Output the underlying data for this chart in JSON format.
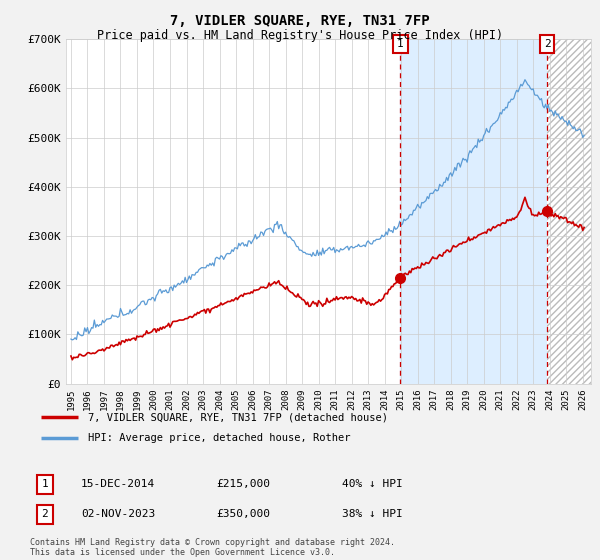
{
  "title": "7, VIDLER SQUARE, RYE, TN31 7FP",
  "subtitle": "Price paid vs. HM Land Registry's House Price Index (HPI)",
  "title_fontsize": 10,
  "subtitle_fontsize": 8.5,
  "ylim": [
    0,
    700000
  ],
  "yticks": [
    0,
    100000,
    200000,
    300000,
    400000,
    500000,
    600000,
    700000
  ],
  "ytick_labels": [
    "£0",
    "£100K",
    "£200K",
    "£300K",
    "£400K",
    "£500K",
    "£600K",
    "£700K"
  ],
  "xlim_start": 1994.7,
  "xlim_end": 2026.5,
  "xticks": [
    1995,
    1996,
    1997,
    1998,
    1999,
    2000,
    2001,
    2002,
    2003,
    2004,
    2005,
    2006,
    2007,
    2008,
    2009,
    2010,
    2011,
    2012,
    2013,
    2014,
    2015,
    2016,
    2017,
    2018,
    2019,
    2020,
    2021,
    2022,
    2023,
    2024,
    2025,
    2026
  ],
  "hpi_color": "#5b9bd5",
  "price_color": "#cc0000",
  "vline_color": "#cc0000",
  "fill_color": "#ddeeff",
  "hatch_color": "#cccccc",
  "marker1_year": 2014.96,
  "marker1_price": 215000,
  "marker2_year": 2023.84,
  "marker2_price": 350000,
  "legend_label_price": "7, VIDLER SQUARE, RYE, TN31 7FP (detached house)",
  "legend_label_hpi": "HPI: Average price, detached house, Rother",
  "annotation1_label": "1",
  "annotation1_date": "15-DEC-2014",
  "annotation1_price": "£215,000",
  "annotation1_hpi": "40% ↓ HPI",
  "annotation2_label": "2",
  "annotation2_date": "02-NOV-2023",
  "annotation2_price": "£350,000",
  "annotation2_hpi": "38% ↓ HPI",
  "footer": "Contains HM Land Registry data © Crown copyright and database right 2024.\nThis data is licensed under the Open Government Licence v3.0.",
  "bg_color": "#f2f2f2",
  "plot_bg_color": "#ffffff",
  "grid_color": "#cccccc"
}
